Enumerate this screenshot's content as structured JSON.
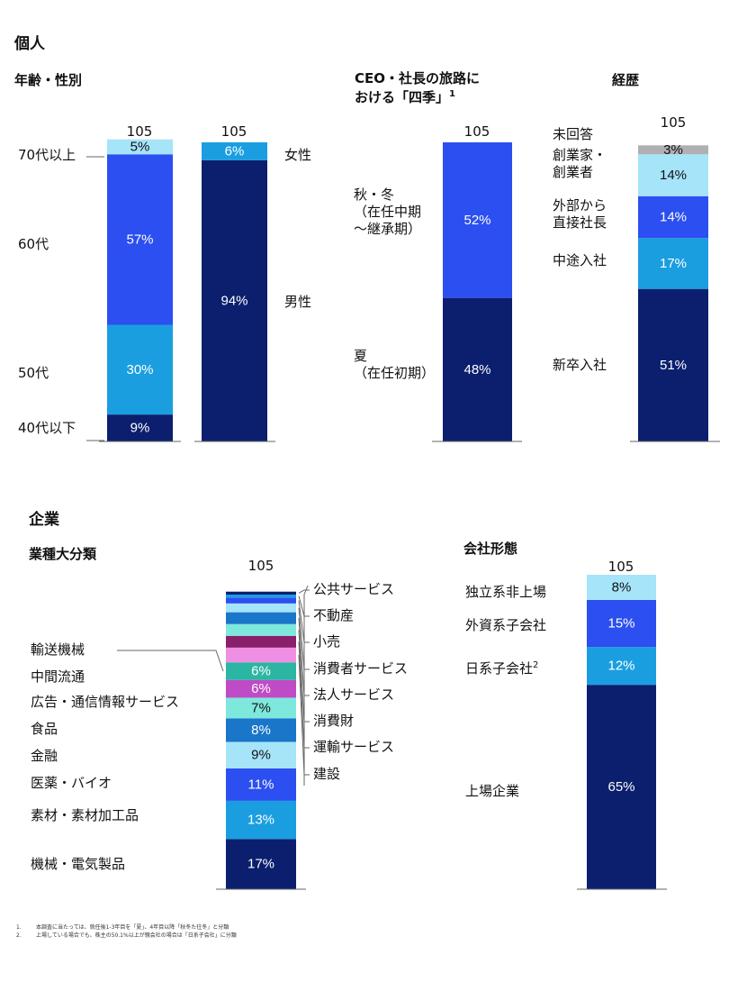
{
  "section_personal": "個人",
  "section_company": "企業",
  "footnotes": [
    {
      "num": "1.",
      "text": "本調査に当たっては、就任後1-3年目を「夏」、4年目以降「秋冬た往冬」と分類"
    },
    {
      "num": "2.",
      "text": "上場している場合でも、株主の50.1%以上が親会社の場合は「日系子会社」に分類"
    }
  ],
  "colors": {
    "navy": "#0b1f6e",
    "royal": "#2b4ff0",
    "teal_blue": "#1a9ee0",
    "light_cyan": "#a5e4f9",
    "mid_blue": "#1976c8",
    "teal": "#2cb5a2",
    "light_teal": "#7fe8dc",
    "pink": "#ee8fe3",
    "magenta": "#c04bc6",
    "purple": "#8a1f6a",
    "grey": "#b0b0b0",
    "axis": "#666666"
  },
  "chart_data": [
    {
      "type": "bar",
      "stacked": true,
      "title": "年齢・性別",
      "total_label": "105",
      "series": [
        {
          "name": "40代以下",
          "values": [
            9
          ]
        },
        {
          "name": "50代",
          "values": [
            30
          ]
        },
        {
          "name": "60代",
          "values": [
            57
          ]
        },
        {
          "name": "70代以上",
          "values": [
            5
          ]
        }
      ],
      "value_labels": [
        "9%",
        "30%",
        "57%",
        "5%"
      ],
      "ylim": [
        0,
        100
      ]
    },
    {
      "type": "bar",
      "stacked": true,
      "total_label": "105",
      "series": [
        {
          "name": "男性",
          "values": [
            94
          ]
        },
        {
          "name": "女性",
          "values": [
            6
          ]
        }
      ],
      "value_labels": [
        "94%",
        "6%"
      ],
      "ylim": [
        0,
        100
      ]
    },
    {
      "type": "bar",
      "stacked": true,
      "title": "CEO・社長の旅路における「四季」",
      "title_line1": "CEO・社長の旅路に",
      "title_line2": "おける「四季」",
      "title_sup": "1",
      "total_label": "105",
      "series": [
        {
          "name": "夏（在任初期）",
          "values": [
            48
          ]
        },
        {
          "name": "秋・冬（在任中期～継承期）",
          "values": [
            52
          ]
        }
      ],
      "category_lines": [
        [
          "夏",
          "（在任初期）"
        ],
        [
          "秋・冬",
          "（在任中期",
          "～継承期）"
        ]
      ],
      "value_labels": [
        "48%",
        "52%"
      ],
      "ylim": [
        0,
        100
      ]
    },
    {
      "type": "bar",
      "stacked": true,
      "title": "経歴",
      "total_label": "105",
      "series": [
        {
          "name": "新卒入社",
          "values": [
            51
          ]
        },
        {
          "name": "中途入社",
          "values": [
            17
          ]
        },
        {
          "name": "外部から直接社長",
          "values": [
            14
          ]
        },
        {
          "name": "創業家・創業者",
          "values": [
            14
          ]
        },
        {
          "name": "未回答",
          "values": [
            3
          ]
        }
      ],
      "category_lines": [
        [
          "新卒入社"
        ],
        [
          "中途入社"
        ],
        [
          "外部から",
          "直接社長"
        ],
        [
          "創業家・",
          "創業者"
        ],
        [
          "未回答"
        ]
      ],
      "value_labels": [
        "51%",
        "17%",
        "14%",
        "14%",
        "3%"
      ],
      "ylim": [
        0,
        100
      ]
    },
    {
      "type": "bar",
      "stacked": true,
      "title": "業種大分類",
      "total_label": "105",
      "series": [
        {
          "name": "機械・電気製品",
          "values": [
            17
          ]
        },
        {
          "name": "素材・素材加工品",
          "values": [
            13
          ]
        },
        {
          "name": "医薬・バイオ",
          "values": [
            11
          ]
        },
        {
          "name": "金融",
          "values": [
            9
          ]
        },
        {
          "name": "食品",
          "values": [
            8
          ]
        },
        {
          "name": "広告・通信情報サービス",
          "values": [
            7
          ]
        },
        {
          "name": "中間流通",
          "values": [
            6
          ]
        },
        {
          "name": "輸送機械",
          "values": [
            6
          ]
        },
        {
          "name": "建設",
          "values": [
            5
          ]
        },
        {
          "name": "運輸サービス",
          "values": [
            4
          ]
        },
        {
          "name": "消費財",
          "values": [
            4
          ]
        },
        {
          "name": "法人サービス",
          "values": [
            4
          ]
        },
        {
          "name": "消費者サービス",
          "values": [
            3
          ]
        },
        {
          "name": "小売",
          "values": [
            2
          ]
        },
        {
          "name": "不動産",
          "values": [
            1
          ]
        },
        {
          "name": "公共サービス",
          "values": [
            1
          ]
        }
      ],
      "value_labels": [
        "17%",
        "13%",
        "11%",
        "9%",
        "8%",
        "7%",
        "6%",
        "6%"
      ],
      "ylim": [
        0,
        100
      ]
    },
    {
      "type": "bar",
      "stacked": true,
      "title": "会社形態",
      "total_label": "105",
      "series": [
        {
          "name": "上場企業",
          "values": [
            65
          ]
        },
        {
          "name": "日系子会社",
          "values": [
            12
          ]
        },
        {
          "name": "外資系子会社",
          "values": [
            15
          ]
        },
        {
          "name": "独立系非上場",
          "values": [
            8
          ]
        }
      ],
      "category_sups": [
        "",
        "2",
        "",
        ""
      ],
      "value_labels": [
        "65%",
        "12%",
        "15%",
        "8%"
      ],
      "ylim": [
        0,
        100
      ]
    }
  ]
}
